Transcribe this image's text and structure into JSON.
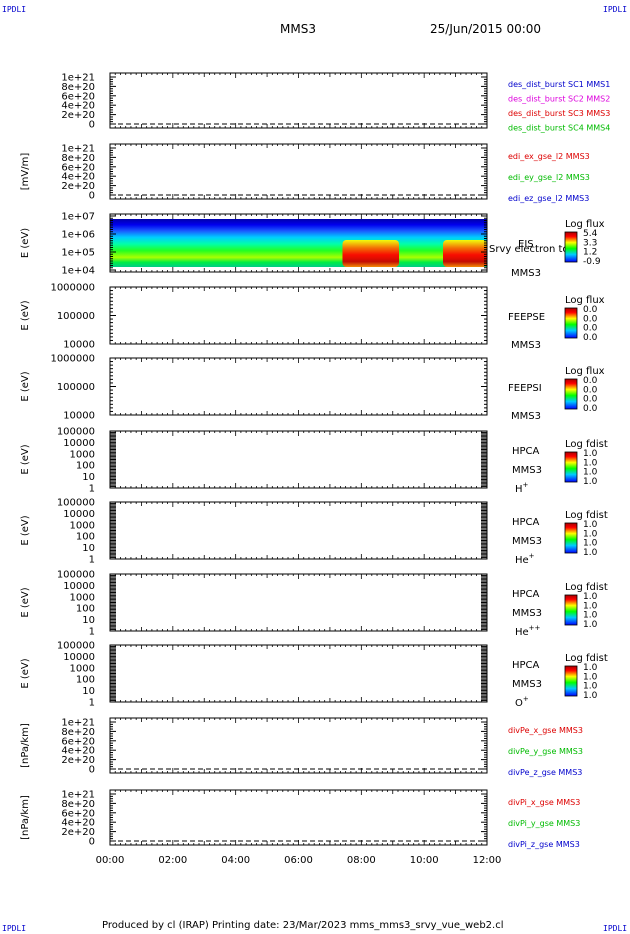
{
  "page": {
    "corner_tl": "IPDLI",
    "corner_tr": "IPDLI",
    "corner_bl": "IPDLI",
    "corner_br": "IPDLI",
    "title": "MMS3",
    "date": "25/Jun/2015 00:00",
    "footer": "Produced by cl (IRAP)   Printing date: 23/Mar/2023   mms_mms3_srvy_vue_web2.cl"
  },
  "chart_data": {
    "type": "line",
    "x_ticks": [
      "00:00",
      "02:00",
      "04:00",
      "06:00",
      "08:00",
      "10:00",
      "12:00"
    ],
    "xlim_hours": [
      0,
      12
    ],
    "panels": [
      {
        "id": "des",
        "kind": "line",
        "ylabel": "",
        "yticks": [
          "1e+21",
          "8e+20",
          "6e+20",
          "4e+20",
          "2e+20",
          "0"
        ],
        "legend": [
          {
            "name": "des_dist_burst SC1 MMS1",
            "color": "#0000cc"
          },
          {
            "name": "des_dist_burst SC2 MMS2",
            "color": "#dd00dd"
          },
          {
            "name": "des_dist_burst SC3 MMS3",
            "color": "#dd0000"
          },
          {
            "name": "des_dist_burst SC4 MMS4",
            "color": "#00bb00"
          }
        ],
        "dashed_zero": true
      },
      {
        "id": "edi",
        "kind": "line",
        "ylabel": "[mV/m]",
        "yticks": [
          "1e+21",
          "8e+20",
          "6e+20",
          "4e+20",
          "2e+20",
          "0"
        ],
        "legend": [
          {
            "name": "edi_ex_gse_l2 MMS3",
            "color": "#dd0000"
          },
          {
            "name": "edi_ey_gse_l2 MMS3",
            "color": "#00bb00"
          },
          {
            "name": "edi_ez_gse_l2 MMS3",
            "color": "#0000cc"
          }
        ],
        "dashed_zero": true
      },
      {
        "id": "eis",
        "kind": "spec",
        "ylabel": "E (eV)",
        "yticks": [
          "1e+07",
          "1e+06",
          "1e+05",
          "1e+04"
        ],
        "labels": [
          "EIS",
          "MMS3"
        ],
        "overlay": "Srvy electron tc",
        "cb_title": "Log flux",
        "cb_ticks": [
          "5.4",
          "3.3",
          "1.2",
          "-0.9"
        ]
      },
      {
        "id": "feepse",
        "kind": "spec",
        "ylabel": "E (eV)",
        "yticks": [
          "1000000",
          "100000",
          "10000"
        ],
        "labels": [
          "FEEPSE",
          "MMS3"
        ],
        "cb_title": "Log flux",
        "cb_ticks": [
          "0.0",
          "0.0",
          "0.0",
          "0.0"
        ]
      },
      {
        "id": "feepsi",
        "kind": "spec",
        "ylabel": "E (eV)",
        "yticks": [
          "1000000",
          "100000",
          "10000"
        ],
        "labels": [
          "FEEPSI",
          "MMS3"
        ],
        "cb_title": "Log flux",
        "cb_ticks": [
          "0.0",
          "0.0",
          "0.0",
          "0.0"
        ]
      },
      {
        "id": "hpca_h",
        "kind": "spec",
        "ylabel": "E (eV)",
        "yticks": [
          "100000",
          "10000",
          "1000",
          "100",
          "10",
          "1"
        ],
        "labels": [
          "HPCA",
          "MMS3"
        ],
        "species": "H",
        "sup": "+",
        "cb_title": "Log fdist",
        "cb_ticks": [
          "1.0",
          "1.0",
          "1.0",
          "1.0"
        ]
      },
      {
        "id": "hpca_he",
        "kind": "spec",
        "ylabel": "E (eV)",
        "yticks": [
          "100000",
          "10000",
          "1000",
          "100",
          "10",
          "1"
        ],
        "labels": [
          "HPCA",
          "MMS3"
        ],
        "species": "He",
        "sup": "+",
        "cb_title": "Log fdist",
        "cb_ticks": [
          "1.0",
          "1.0",
          "1.0",
          "1.0"
        ]
      },
      {
        "id": "hpca_he2",
        "kind": "spec",
        "ylabel": "E (eV)",
        "yticks": [
          "100000",
          "10000",
          "1000",
          "100",
          "10",
          "1"
        ],
        "labels": [
          "HPCA",
          "MMS3"
        ],
        "species": "He",
        "sup": "++",
        "cb_title": "Log fdist",
        "cb_ticks": [
          "1.0",
          "1.0",
          "1.0",
          "1.0"
        ]
      },
      {
        "id": "hpca_o",
        "kind": "spec",
        "ylabel": "E (eV)",
        "yticks": [
          "100000",
          "10000",
          "1000",
          "100",
          "10",
          "1"
        ],
        "labels": [
          "HPCA",
          "MMS3"
        ],
        "species": "O",
        "sup": "+",
        "cb_title": "Log fdist",
        "cb_ticks": [
          "1.0",
          "1.0",
          "1.0",
          "1.0"
        ]
      },
      {
        "id": "divpe",
        "kind": "line",
        "ylabel": "[nPa/km]",
        "yticks": [
          "1e+21",
          "8e+20",
          "6e+20",
          "4e+20",
          "2e+20",
          "0"
        ],
        "legend": [
          {
            "name": "divPe_x_gse MMS3",
            "color": "#dd0000"
          },
          {
            "name": "divPe_y_gse MMS3",
            "color": "#00bb00"
          },
          {
            "name": "divPe_z_gse MMS3",
            "color": "#0000cc"
          }
        ],
        "dashed_zero": true
      },
      {
        "id": "divpi",
        "kind": "line",
        "ylabel": "[nPa/km]",
        "yticks": [
          "1e+21",
          "8e+20",
          "6e+20",
          "4e+20",
          "2e+20",
          "0"
        ],
        "legend": [
          {
            "name": "divPi_x_gse MMS3",
            "color": "#dd0000"
          },
          {
            "name": "divPi_y_gse MMS3",
            "color": "#00bb00"
          },
          {
            "name": "divPi_z_gse MMS3",
            "color": "#0000cc"
          }
        ],
        "dashed_zero": true
      }
    ],
    "eis_features": [
      {
        "from_hour": 7.4,
        "to_hour": 9.2,
        "level": "high"
      },
      {
        "from_hour": 10.6,
        "to_hour": 12.0,
        "level": "high"
      }
    ]
  }
}
